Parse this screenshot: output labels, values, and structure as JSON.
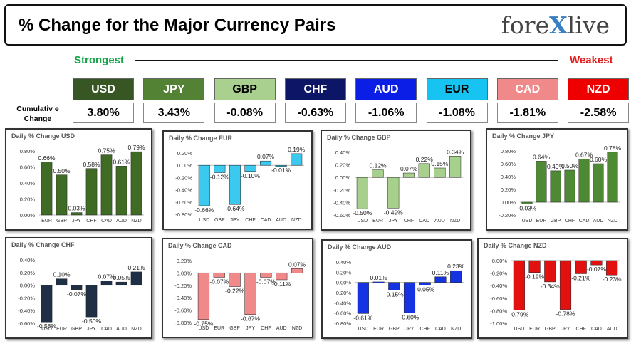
{
  "header": {
    "title": "% Change for the Major Currency Pairs",
    "logo_left": "fore",
    "logo_x": "X",
    "logo_right": "live"
  },
  "ranking": {
    "strongest_label": "Strongest",
    "weakest_label": "Weakest",
    "cumulative_label_line1": "Cumulativ e",
    "cumulative_label_line2": "Change",
    "currencies": [
      {
        "code": "USD",
        "value": "3.80%",
        "bg": "#375623",
        "fg": "#ffffff"
      },
      {
        "code": "JPY",
        "value": "3.43%",
        "bg": "#548235",
        "fg": "#ffffff"
      },
      {
        "code": "GBP",
        "value": "-0.08%",
        "bg": "#a9d08e",
        "fg": "#000000"
      },
      {
        "code": "CHF",
        "value": "-0.63%",
        "bg": "#0d1566",
        "fg": "#ffffff"
      },
      {
        "code": "AUD",
        "value": "-1.06%",
        "bg": "#0a1ee6",
        "fg": "#ffffff"
      },
      {
        "code": "EUR",
        "value": "-1.08%",
        "bg": "#17c3f0",
        "fg": "#000000"
      },
      {
        "code": "CAD",
        "value": "-1.81%",
        "bg": "#f08a8a",
        "fg": "#ffffff"
      },
      {
        "code": "NZD",
        "value": "-2.58%",
        "bg": "#ee0000",
        "fg": "#ffffff"
      }
    ]
  },
  "chart_data": [
    {
      "type": "bar",
      "title": "Daily % Change USD",
      "categories": [
        "EUR",
        "GBP",
        "JPY",
        "CHF",
        "CAD",
        "AUD",
        "NZD"
      ],
      "values": [
        0.66,
        0.5,
        0.03,
        0.58,
        0.75,
        0.61,
        0.79
      ],
      "labels": [
        "0.66%",
        "0.50%",
        "0.03%",
        "0.58%",
        "0.75%",
        "0.61%",
        "0.79%"
      ],
      "ylim": [
        0,
        0.8
      ],
      "yticks": [
        0,
        0.2,
        0.4,
        0.6,
        0.8
      ],
      "ytick_labels": [
        "0.00%",
        "0.20%",
        "0.40%",
        "0.60%",
        "0.80%"
      ],
      "color": "#3f6b25"
    },
    {
      "type": "bar",
      "title": "Daily % Change EUR",
      "categories": [
        "USD",
        "GBP",
        "JPY",
        "CHF",
        "CAD",
        "AUD",
        "NZD"
      ],
      "values": [
        -0.66,
        -0.12,
        -0.64,
        -0.1,
        0.07,
        -0.01,
        0.19
      ],
      "labels": [
        "-0.66%",
        "-0.12%",
        "-0.64%",
        "-0.10%",
        "0.07%",
        "-0.01%",
        "0.19%"
      ],
      "ylim": [
        -0.8,
        0.2
      ],
      "yticks": [
        0.2,
        0,
        -0.2,
        -0.4,
        -0.6,
        -0.8
      ],
      "ytick_labels": [
        "0.20%",
        "0.00%",
        "-0.20%",
        "-0.40%",
        "-0.60%",
        "-0.80%"
      ],
      "color": "#3cc9ef"
    },
    {
      "type": "bar",
      "title": "Daily % Change GBP",
      "categories": [
        "USD",
        "EUR",
        "JPY",
        "CHF",
        "CAD",
        "AUD",
        "NZD"
      ],
      "values": [
        -0.5,
        0.12,
        -0.49,
        0.07,
        0.22,
        0.15,
        0.34
      ],
      "labels": [
        "-0.50%",
        "0.12%",
        "-0.49%",
        "0.07%",
        "0.22%",
        "0.15%",
        "0.34%"
      ],
      "ylim": [
        -0.6,
        0.4
      ],
      "yticks": [
        0.4,
        0.2,
        0,
        -0.2,
        -0.4,
        -0.6
      ],
      "ytick_labels": [
        "0.40%",
        "0.20%",
        "0.00%",
        "-0.20%",
        "-0.40%",
        "-0.60%"
      ],
      "color": "#a8d08d"
    },
    {
      "type": "bar",
      "title": "Daily % Change JPY",
      "categories": [
        "USD",
        "EUR",
        "GBP",
        "CHF",
        "CAD",
        "AUD",
        "NZD"
      ],
      "values": [
        -0.03,
        0.64,
        0.49,
        0.5,
        0.67,
        0.6,
        0.78
      ],
      "labels": [
        "-0.03%",
        "0.64%",
        "0.49%",
        "0.50%",
        "0.67%",
        "0.60%",
        "0.78%"
      ],
      "ylim": [
        -0.2,
        0.8
      ],
      "yticks": [
        0.8,
        0.6,
        0.4,
        0.2,
        0,
        -0.2
      ],
      "ytick_labels": [
        "0.80%",
        "0.60%",
        "0.40%",
        "0.20%",
        "0.00%",
        "-0.20%"
      ],
      "color": "#4e8a33"
    },
    {
      "type": "bar",
      "title": "Daily % Change CHF",
      "categories": [
        "USD",
        "EUR",
        "GBP",
        "JPY",
        "CAD",
        "AUD",
        "NZD"
      ],
      "values": [
        -0.58,
        0.1,
        -0.07,
        -0.5,
        0.07,
        0.05,
        0.21
      ],
      "labels": [
        "-0.58%",
        "0.10%",
        "-0.07%",
        "-0.50%",
        "0.07%",
        "0.05%",
        "0.21%"
      ],
      "ylim": [
        -0.6,
        0.4
      ],
      "yticks": [
        0.4,
        0.2,
        0,
        -0.2,
        -0.4,
        -0.6
      ],
      "ytick_labels": [
        "0.40%",
        "0.20%",
        "0.00%",
        "-0.20%",
        "-0.40%",
        "-0.60%"
      ],
      "color": "#1f2f45"
    },
    {
      "type": "bar",
      "title": "Daily % Change CAD",
      "categories": [
        "USD",
        "EUR",
        "GBP",
        "JPY",
        "CHF",
        "AUD",
        "NZD"
      ],
      "values": [
        -0.75,
        -0.07,
        -0.22,
        -0.67,
        -0.07,
        -0.11,
        0.07
      ],
      "labels": [
        "-0.75%",
        "-0.07%",
        "-0.22%",
        "-0.67%",
        "-0.07%",
        "-0.11%",
        "0.07%"
      ],
      "ylim": [
        -0.8,
        0.2
      ],
      "yticks": [
        0.2,
        0,
        -0.2,
        -0.4,
        -0.6,
        -0.8
      ],
      "ytick_labels": [
        "0.20%",
        "0.00%",
        "-0.20%",
        "-0.40%",
        "-0.60%",
        "-0.80%"
      ],
      "color": "#f08a8a"
    },
    {
      "type": "bar",
      "title": "Daily % Change AUD",
      "categories": [
        "USD",
        "EUR",
        "GBP",
        "JPY",
        "CHF",
        "CAD",
        "NZD"
      ],
      "values": [
        -0.61,
        0.01,
        -0.15,
        -0.6,
        -0.05,
        0.11,
        0.23
      ],
      "labels": [
        "-0.61%",
        "0.01%",
        "-0.15%",
        "-0.60%",
        "-0.05%",
        "0.11%",
        "0.23%"
      ],
      "ylim": [
        -0.8,
        0.4
      ],
      "yticks": [
        0.4,
        0.2,
        0,
        -0.2,
        -0.4,
        -0.6,
        -0.8
      ],
      "ytick_labels": [
        "0.40%",
        "0.20%",
        "0.00%",
        "-0.20%",
        "-0.40%",
        "-0.60%",
        "-0.80%"
      ],
      "color": "#1533e0"
    },
    {
      "type": "bar",
      "title": "Daily % Change NZD",
      "categories": [
        "USD",
        "EUR",
        "GBP",
        "JPY",
        "CHF",
        "CAD",
        "AUD"
      ],
      "values": [
        -0.79,
        -0.19,
        -0.34,
        -0.78,
        -0.21,
        -0.07,
        -0.23
      ],
      "labels": [
        "-0.79%",
        "-0.19%",
        "-0.34%",
        "-0.78%",
        "-0.21%",
        "-0.07%",
        "-0.23%"
      ],
      "ylim": [
        -1.0,
        0.0
      ],
      "yticks": [
        0,
        -0.2,
        -0.4,
        -0.6,
        -0.8,
        -1.0
      ],
      "ytick_labels": [
        "0.00%",
        "-0.20%",
        "-0.40%",
        "-0.60%",
        "-0.80%",
        "-1.00%"
      ],
      "color": "#e31010"
    }
  ]
}
